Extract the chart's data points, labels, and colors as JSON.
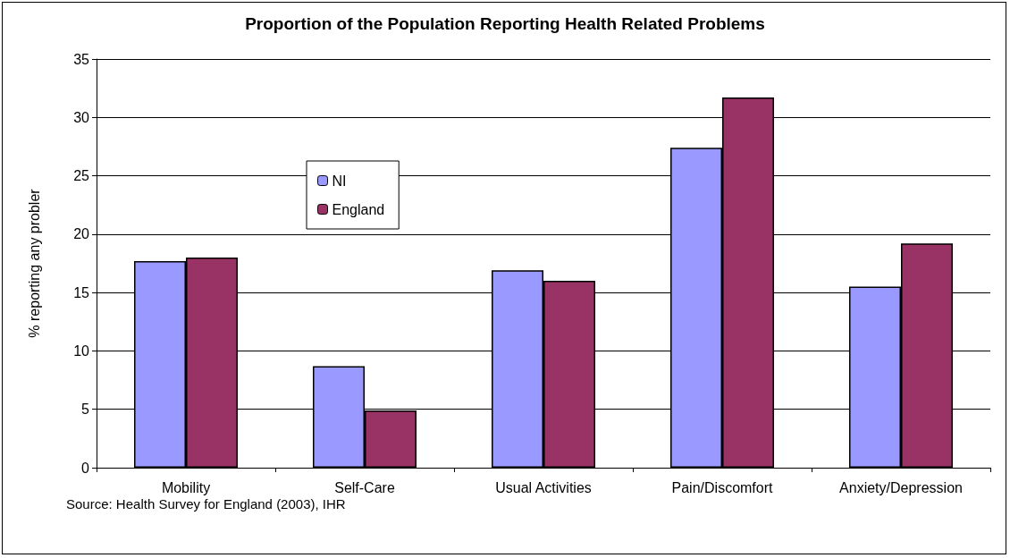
{
  "chart_data": {
    "type": "bar",
    "title": "Proportion of the Population Reporting Health Related Problems",
    "ylabel": "% reporting any probler",
    "categories": [
      "Mobility",
      "Self-Care",
      "Usual Activities",
      "Pain/Discomfort",
      "Anxiety/Depression"
    ],
    "series": [
      {
        "name": "NI",
        "color": "#9999ff",
        "values": [
          17.7,
          8.7,
          16.9,
          27.4,
          15.5
        ]
      },
      {
        "name": "England",
        "color": "#993366",
        "values": [
          18.0,
          4.9,
          16.0,
          31.7,
          19.2
        ]
      }
    ],
    "ylim": [
      0,
      35
    ],
    "yticks": [
      0,
      5,
      10,
      15,
      20,
      25,
      30,
      35
    ],
    "grid": "y",
    "legend": "top left",
    "annotations": [
      "Source: Health Survey for England (2003), IHR"
    ]
  }
}
